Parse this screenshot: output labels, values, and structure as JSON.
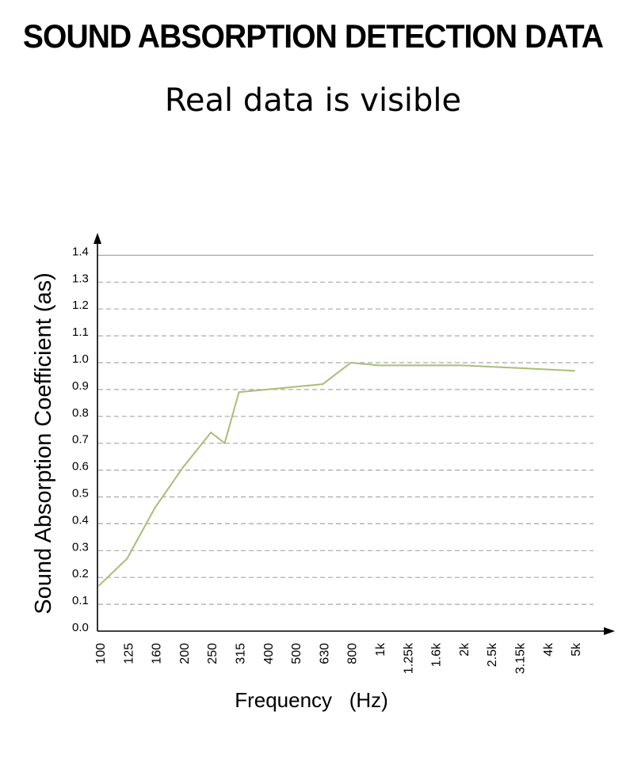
{
  "header": {
    "title": "SOUND ABSORPTION DETECTION DATA",
    "subtitle": "Real data is visible"
  },
  "chart_data": {
    "type": "line",
    "title": "SOUND ABSORPTION DETECTION DATA",
    "subtitle": "Real data is visible",
    "xlabel": "Frequency   (Hz)",
    "ylabel": "Sound Absorption Coefficient (as)",
    "categories": [
      "100",
      "125",
      "160",
      "200",
      "250",
      "315",
      "400",
      "500",
      "630",
      "800",
      "1k",
      "1.25k",
      "1.6k",
      "2k",
      "2.5k",
      "3.15k",
      "4k",
      "5k"
    ],
    "y_ticks": [
      "0.0",
      "0.1",
      "0.2",
      "0.3",
      "0.4",
      "0.5",
      "0.6",
      "0.7",
      "0.8",
      "0.9",
      "1.0",
      "1.1",
      "1.2",
      "1.3",
      "1.4"
    ],
    "ylim": [
      0,
      1.4
    ],
    "grid": true,
    "line_color": "#a9bd78",
    "grid_color": "#a8a8a8",
    "series": [
      {
        "points": [
          {
            "x": "100",
            "y": 0.17
          },
          {
            "x": "125",
            "y": 0.27
          },
          {
            "x": "160",
            "y": 0.46
          },
          {
            "x": "200",
            "y": 0.61
          },
          {
            "x": "250",
            "y": 0.74
          },
          {
            "x": "280",
            "y": 0.7
          },
          {
            "x": "315",
            "y": 0.89
          },
          {
            "x": "400",
            "y": 0.9
          },
          {
            "x": "500",
            "y": 0.91
          },
          {
            "x": "630",
            "y": 0.92
          },
          {
            "x": "800",
            "y": 1.0
          },
          {
            "x": "1k",
            "y": 0.99
          },
          {
            "x": "1.25k",
            "y": 0.99
          },
          {
            "x": "1.6k",
            "y": 0.99
          },
          {
            "x": "2k",
            "y": 0.99
          },
          {
            "x": "2.5k",
            "y": 0.985
          },
          {
            "x": "3.15k",
            "y": 0.98
          },
          {
            "x": "4k",
            "y": 0.975
          },
          {
            "x": "5k",
            "y": 0.97
          }
        ]
      }
    ]
  }
}
